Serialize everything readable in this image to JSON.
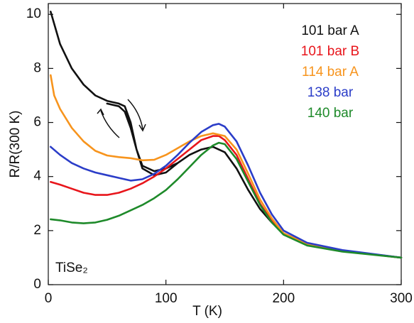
{
  "chart_data": {
    "type": "line",
    "x_label": "T (K)",
    "y_label": "R/R(300 K)",
    "annotation": "TiSe₂",
    "xlim": [
      0,
      300
    ],
    "xticks": [
      0,
      100,
      200,
      300
    ],
    "ylim": [
      0,
      10.4
    ],
    "yticks": [
      0,
      2,
      4,
      6,
      8,
      10
    ],
    "legend": "upper right",
    "series": [
      {
        "name": "101 bar A",
        "color": "#111111",
        "x": [
          2,
          10,
          20,
          30,
          40,
          50,
          60,
          65,
          70,
          75,
          80,
          90,
          100,
          110,
          120,
          130,
          140,
          150,
          160,
          170,
          180,
          190,
          200,
          220,
          250,
          300,
          200,
          110,
          100,
          90,
          80,
          75,
          70,
          65,
          60,
          50
        ],
        "values": [
          10.1,
          8.9,
          8.0,
          7.4,
          7.0,
          6.8,
          6.7,
          6.6,
          6.0,
          5.0,
          4.4,
          4.2,
          4.3,
          4.5,
          4.8,
          5.0,
          5.1,
          4.9,
          4.3,
          3.5,
          2.8,
          2.3,
          1.9,
          1.5,
          1.25,
          1.0,
          null,
          4.5,
          4.15,
          4.05,
          4.3,
          5.0,
          5.8,
          6.4,
          6.6,
          6.7
        ]
      },
      {
        "name": "101 bar B",
        "color": "#e8151b",
        "x": [
          2,
          10,
          20,
          30,
          40,
          50,
          60,
          70,
          80,
          90,
          100,
          110,
          120,
          130,
          140,
          145,
          150,
          160,
          170,
          180,
          190,
          200,
          220,
          250,
          300
        ],
        "values": [
          3.8,
          3.7,
          3.55,
          3.4,
          3.32,
          3.32,
          3.4,
          3.55,
          3.75,
          4.0,
          4.3,
          4.65,
          5.0,
          5.35,
          5.5,
          5.5,
          5.35,
          4.8,
          3.9,
          3.0,
          2.35,
          1.9,
          1.5,
          1.25,
          1.0
        ]
      },
      {
        "name": "114 bar A",
        "color": "#f7941d",
        "x": [
          2,
          5,
          10,
          20,
          30,
          40,
          50,
          60,
          70,
          80,
          90,
          100,
          110,
          120,
          130,
          140,
          150,
          160,
          170,
          180,
          190,
          200,
          220,
          250,
          300
        ],
        "values": [
          7.75,
          7.0,
          6.5,
          5.8,
          5.3,
          4.95,
          4.78,
          4.72,
          4.68,
          4.6,
          4.62,
          4.8,
          5.05,
          5.3,
          5.5,
          5.6,
          5.5,
          5.0,
          4.1,
          3.15,
          2.45,
          1.9,
          1.5,
          1.25,
          1.0
        ]
      },
      {
        "name": "138 bar",
        "color": "#2b3dc8",
        "x": [
          2,
          10,
          20,
          30,
          40,
          50,
          60,
          70,
          80,
          90,
          100,
          110,
          120,
          130,
          140,
          145,
          150,
          160,
          170,
          180,
          190,
          200,
          220,
          250,
          300
        ],
        "values": [
          5.1,
          4.8,
          4.5,
          4.3,
          4.15,
          4.05,
          3.95,
          3.85,
          3.9,
          4.1,
          4.4,
          4.8,
          5.25,
          5.65,
          5.9,
          5.95,
          5.85,
          5.3,
          4.4,
          3.4,
          2.6,
          2.0,
          1.55,
          1.28,
          1.0
        ]
      },
      {
        "name": "140 bar",
        "color": "#1e8a2a",
        "x": [
          2,
          10,
          20,
          30,
          40,
          50,
          60,
          70,
          80,
          90,
          100,
          110,
          120,
          130,
          140,
          145,
          150,
          160,
          170,
          180,
          190,
          200,
          220,
          250,
          300
        ],
        "values": [
          2.42,
          2.38,
          2.3,
          2.27,
          2.3,
          2.4,
          2.55,
          2.75,
          2.95,
          3.2,
          3.5,
          3.9,
          4.35,
          4.8,
          5.15,
          5.25,
          5.2,
          4.65,
          3.8,
          2.95,
          2.3,
          1.85,
          1.45,
          1.22,
          1.0
        ]
      }
    ]
  }
}
